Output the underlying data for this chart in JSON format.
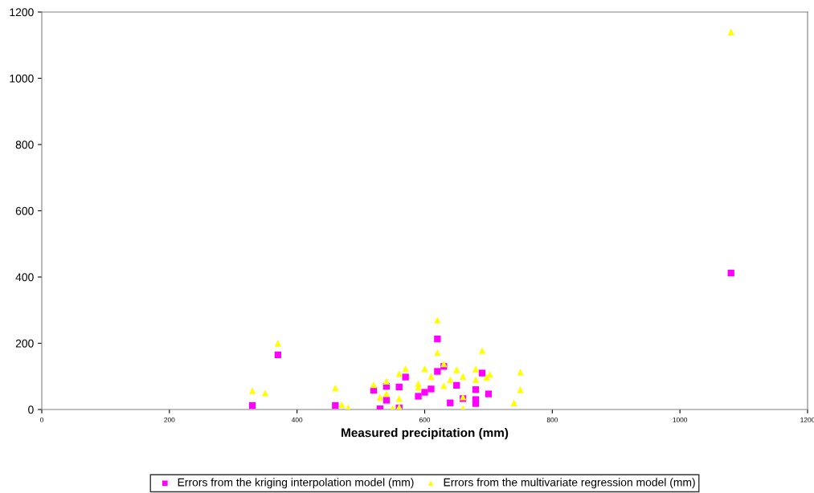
{
  "chart_data": {
    "type": "scatter",
    "xlabel": "Measured precipitation (mm)",
    "xlim": [
      0,
      1200
    ],
    "xticks": [
      0,
      200,
      400,
      600,
      800,
      1000,
      1200
    ],
    "ylim": [
      0,
      1200
    ],
    "yticks": [
      0,
      200,
      400,
      600,
      800,
      1000,
      1200
    ],
    "grid": false,
    "legend": "bottom",
    "series": [
      {
        "name": "Errors from the kriging interpolation model (mm)",
        "color": "#ff00ff",
        "marker": "square",
        "x": [
          330,
          370,
          460,
          520,
          530,
          540,
          540,
          560,
          560,
          570,
          590,
          600,
          610,
          620,
          620,
          630,
          640,
          650,
          660,
          680,
          680,
          680,
          690,
          700,
          1080
        ],
        "values": [
          12,
          165,
          12,
          58,
          2,
          28,
          70,
          5,
          68,
          98,
          40,
          52,
          62,
          115,
          213,
          130,
          20,
          73,
          33,
          60,
          30,
          18,
          110,
          47,
          412
        ]
      },
      {
        "name": "Errors from the multivariate regression model (mm)",
        "color": "#ffff00",
        "marker": "triangle",
        "x": [
          330,
          350,
          370,
          460,
          470,
          480,
          520,
          530,
          540,
          540,
          550,
          560,
          560,
          560,
          570,
          590,
          590,
          600,
          610,
          620,
          620,
          630,
          630,
          640,
          650,
          660,
          660,
          660,
          680,
          680,
          690,
          697,
          702,
          740,
          750,
          750,
          1080
        ],
        "values": [
          57,
          50,
          200,
          65,
          15,
          5,
          75,
          37,
          48,
          85,
          3,
          108,
          33,
          8,
          123,
          67,
          78,
          123,
          100,
          270,
          172,
          138,
          72,
          90,
          120,
          100,
          38,
          3,
          122,
          90,
          178,
          97,
          106,
          20,
          113,
          60,
          1140
        ]
      }
    ]
  }
}
